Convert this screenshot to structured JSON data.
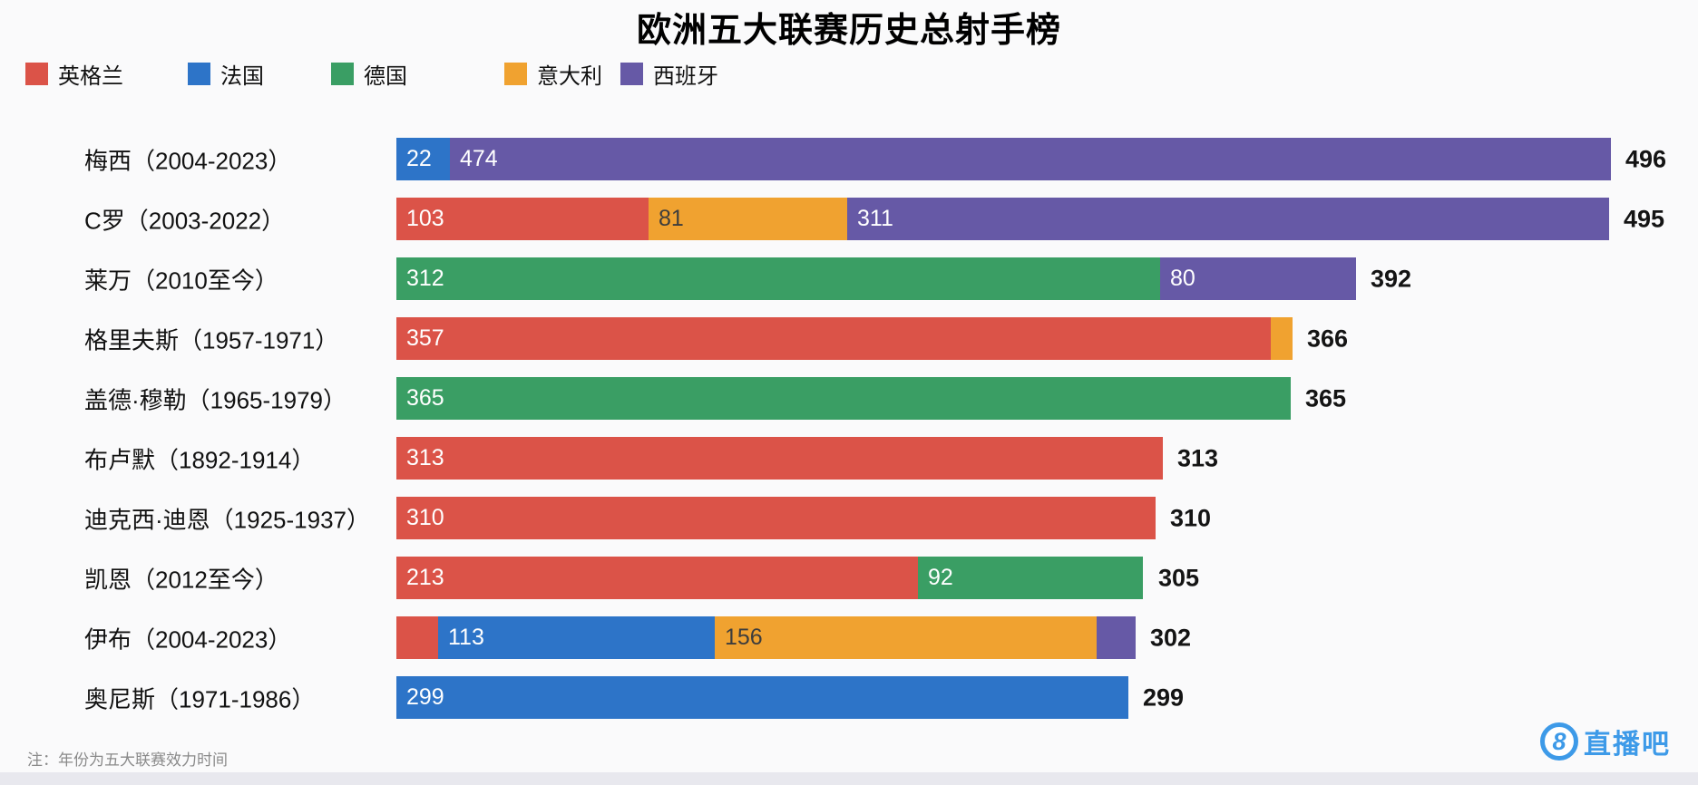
{
  "title": "欧洲五大联赛历史总射手榜",
  "note": "注：年份为五大联赛效力时间",
  "watermark": {
    "badge": "8",
    "text": "直播吧",
    "color": "#3d9ae8"
  },
  "chart_data": {
    "type": "bar",
    "orientation": "horizontal",
    "stacked": true,
    "value_unit": "进球",
    "x_range": [
      0,
      496
    ],
    "grid": false,
    "legend_position": "top-left",
    "legend": [
      {
        "key": "england",
        "label": "英格兰",
        "color": "#db5348"
      },
      {
        "key": "france",
        "label": "法国",
        "color": "#2d74c8"
      },
      {
        "key": "germany",
        "label": "德国",
        "color": "#3a9e64"
      },
      {
        "key": "italy",
        "label": "意大利",
        "color": "#f0a230"
      },
      {
        "key": "spain",
        "label": "西班牙",
        "color": "#6659a6"
      }
    ],
    "rows": [
      {
        "label": "梅西（2004-2023）",
        "total": 496,
        "segments": [
          {
            "key": "france",
            "value": 22,
            "label": "22"
          },
          {
            "key": "spain",
            "value": 474,
            "label": "474"
          }
        ]
      },
      {
        "label": "C罗（2003-2022）",
        "total": 495,
        "segments": [
          {
            "key": "england",
            "value": 103,
            "label": "103"
          },
          {
            "key": "italy",
            "value": 81,
            "label": "81"
          },
          {
            "key": "spain",
            "value": 311,
            "label": "311"
          }
        ]
      },
      {
        "label": "莱万（2010至今）",
        "total": 392,
        "segments": [
          {
            "key": "germany",
            "value": 312,
            "label": "312"
          },
          {
            "key": "spain",
            "value": 80,
            "label": "80"
          }
        ]
      },
      {
        "label": "格里夫斯（1957-1971）",
        "total": 366,
        "segments": [
          {
            "key": "england",
            "value": 357,
            "label": "357"
          },
          {
            "key": "italy",
            "value": 9,
            "label": ""
          }
        ]
      },
      {
        "label": "盖德·穆勒（1965-1979）",
        "total": 365,
        "segments": [
          {
            "key": "germany",
            "value": 365,
            "label": "365"
          }
        ]
      },
      {
        "label": "布卢默（1892-1914）",
        "total": 313,
        "segments": [
          {
            "key": "england",
            "value": 313,
            "label": "313"
          }
        ]
      },
      {
        "label": "迪克西·迪恩（1925-1937）",
        "total": 310,
        "segments": [
          {
            "key": "england",
            "value": 310,
            "label": "310"
          }
        ]
      },
      {
        "label": "凯恩（2012至今）",
        "total": 305,
        "segments": [
          {
            "key": "england",
            "value": 213,
            "label": "213"
          },
          {
            "key": "germany",
            "value": 92,
            "label": "92"
          }
        ]
      },
      {
        "label": "伊布（2004-2023）",
        "total": 302,
        "segments": [
          {
            "key": "england",
            "value": 17,
            "label": ""
          },
          {
            "key": "france",
            "value": 113,
            "label": "113"
          },
          {
            "key": "italy",
            "value": 156,
            "label": "156"
          },
          {
            "key": "spain",
            "value": 16,
            "label": ""
          }
        ]
      },
      {
        "label": "奥尼斯（1971-1986）",
        "total": 299,
        "segments": [
          {
            "key": "france",
            "value": 299,
            "label": "299"
          }
        ]
      }
    ]
  }
}
